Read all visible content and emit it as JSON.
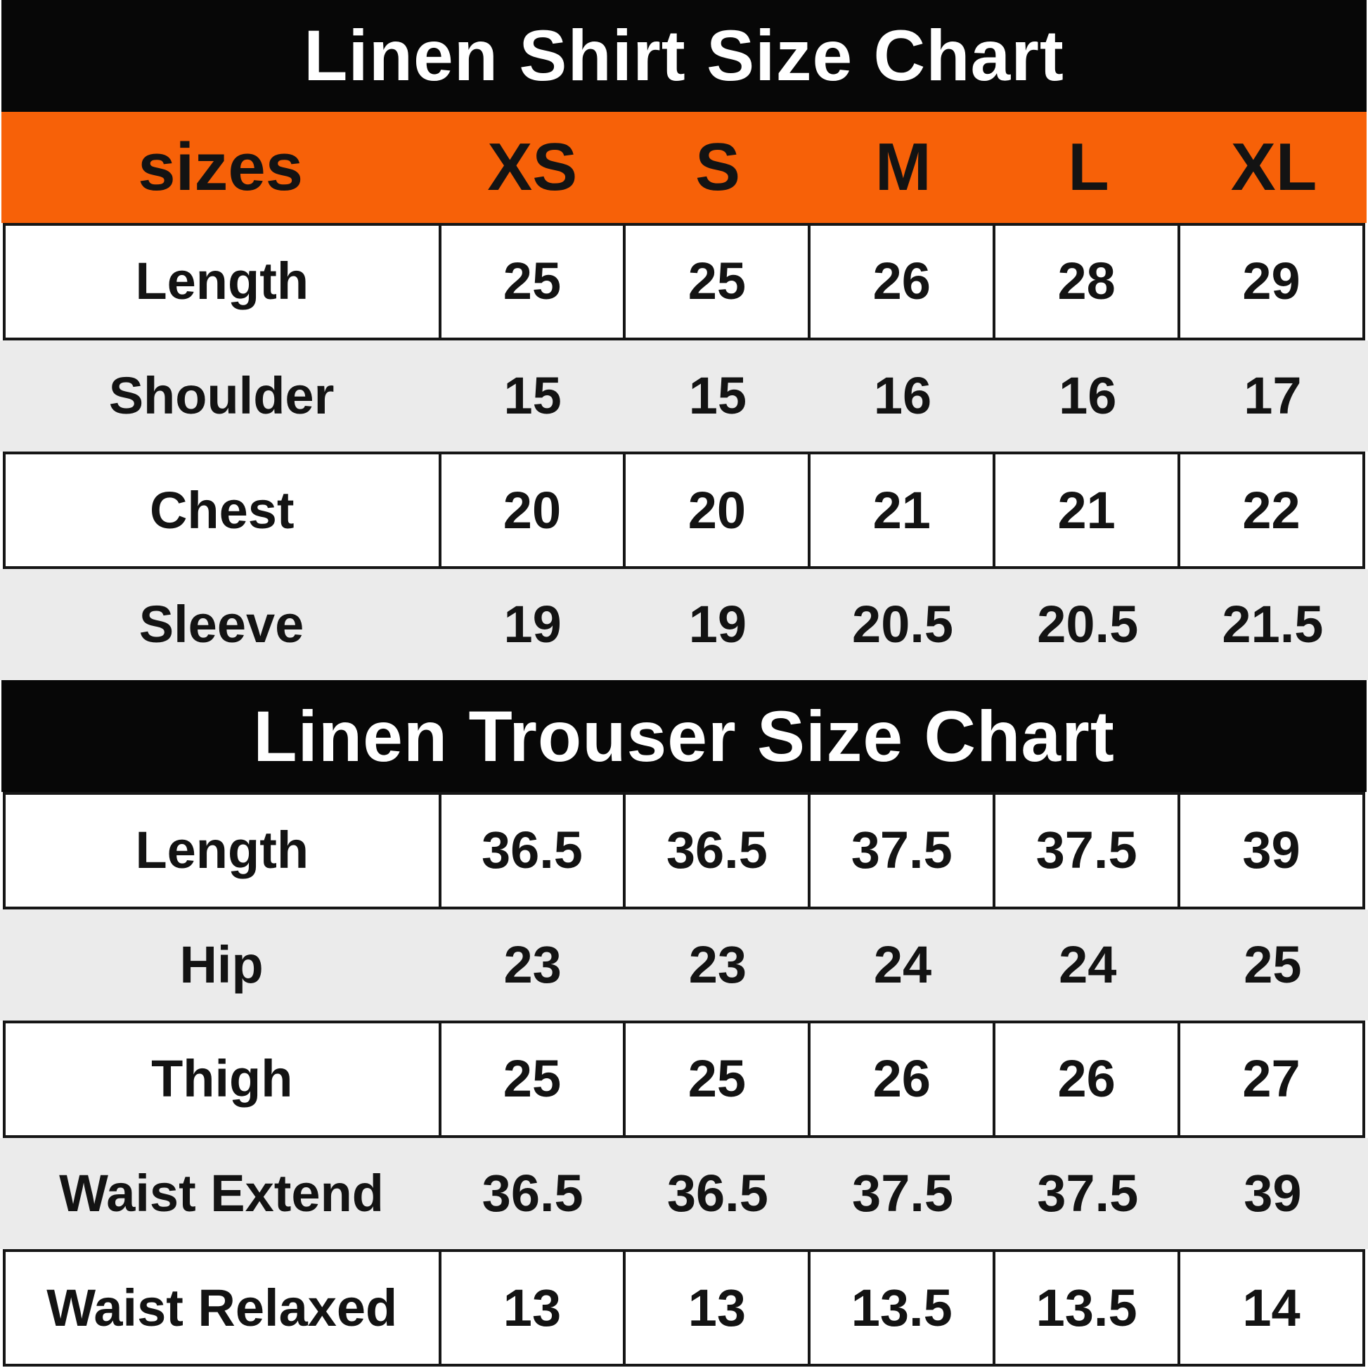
{
  "colors": {
    "title_bar_bg": "#070707",
    "title_text": "#ffffff",
    "accent_orange": "#f76108",
    "header_text": "#ffffff",
    "row_white_bg": "#ffffff",
    "row_gray_bg": "#ebebeb",
    "cell_text": "#131313",
    "border": "#161616"
  },
  "size_header": {
    "label": "sizes",
    "sizes": [
      "XS",
      "S",
      "M",
      "L",
      "XL"
    ]
  },
  "chart_data": [
    {
      "type": "table",
      "title": "Linen Shirt Size Chart",
      "columns": [
        "sizes",
        "XS",
        "S",
        "M",
        "L",
        "XL"
      ],
      "rows": [
        [
          "Length",
          25,
          25,
          26,
          28,
          29
        ],
        [
          "Shoulder",
          15,
          15,
          16,
          16,
          17
        ],
        [
          "Chest",
          20,
          20,
          21,
          21,
          22
        ],
        [
          "Sleeve",
          19,
          19,
          20.5,
          20.5,
          21.5
        ]
      ]
    },
    {
      "type": "table",
      "title": "Linen Trouser Size Chart",
      "columns": [
        "sizes",
        "XS",
        "S",
        "M",
        "L",
        "XL"
      ],
      "rows": [
        [
          "Length",
          36.5,
          36.5,
          37.5,
          37.5,
          39
        ],
        [
          "Hip",
          23,
          23,
          24,
          24,
          25
        ],
        [
          "Thigh",
          25,
          25,
          26,
          26,
          27
        ],
        [
          "Waist Extend",
          36.5,
          36.5,
          37.5,
          37.5,
          39
        ],
        [
          "Waist Relaxed",
          13,
          13,
          13.5,
          13.5,
          14
        ]
      ]
    }
  ]
}
